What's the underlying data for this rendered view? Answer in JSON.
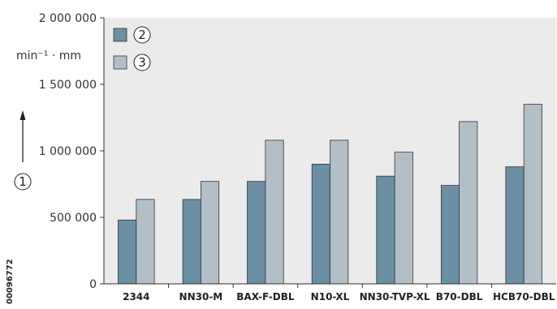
{
  "chart_data": {
    "type": "bar",
    "ylabel": "min⁻¹ · mm",
    "axis_marker": "1",
    "ylim": [
      0,
      2000000
    ],
    "yticks": [
      {
        "value": 0,
        "label": "0"
      },
      {
        "value": 500000,
        "label": "500 000"
      },
      {
        "value": 1000000,
        "label": "1 000 000"
      },
      {
        "value": 1500000,
        "label": "1 500 000"
      },
      {
        "value": 2000000,
        "label": "2 000 000"
      }
    ],
    "categories": [
      "2344",
      "NN30-M",
      "BAX-F-DBL",
      "N10-XL",
      "NN30-TVP-XL",
      "B70-DBL",
      "HCB70-DBL"
    ],
    "series": [
      {
        "name": "2",
        "color": "#6b8fa3",
        "values": [
          480000,
          635000,
          770000,
          900000,
          810000,
          740000,
          880000
        ]
      },
      {
        "name": "3",
        "color": "#b3bfc6",
        "values": [
          635000,
          770000,
          1080000,
          1080000,
          990000,
          1220000,
          1350000
        ]
      }
    ],
    "legend_position": "top-left",
    "grid": false,
    "background": "#ebebeb",
    "side_label": "00096772"
  }
}
